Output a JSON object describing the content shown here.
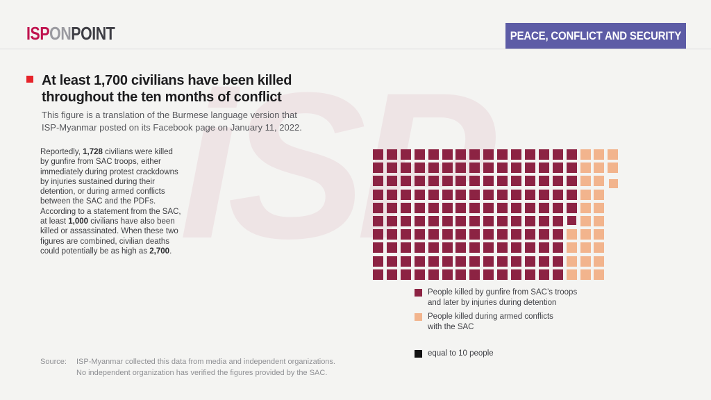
{
  "header": {
    "logo_part1": "ISP",
    "logo_part2": "ON",
    "logo_part3": "POINT",
    "banner_label": "PEACE, CONFLICT AND SECURITY",
    "banner_color": "#5d5ca6"
  },
  "headline": {
    "line1": "At least 1,700 civilians have been killed",
    "line2": "throughout the ten months of conflict",
    "bullet_color": "#e6232a",
    "subtitle_line1": "This figure is a translation of the Burmese language version that",
    "subtitle_line2": "ISP-Myanmar posted on its Facebook page on January 11, 2022."
  },
  "body": {
    "lines": [
      [
        {
          "t": "Reportedly, "
        },
        {
          "t": "1,728",
          "b": true
        },
        {
          "t": " civilians were killed"
        }
      ],
      [
        {
          "t": "by gunfire from SAC troops, either"
        }
      ],
      [
        {
          "t": "immediately during protest crackdowns"
        }
      ],
      [
        {
          "t": "by injuries sustained during their"
        }
      ],
      [
        {
          "t": "detention, or during armed conflicts"
        }
      ],
      [
        {
          "t": "between the SAC and the PDFs."
        }
      ],
      [
        {
          "t": "According to a statement from the SAC,"
        }
      ],
      [
        {
          "t": "at least "
        },
        {
          "t": "1,000",
          "b": true
        },
        {
          "t": " civilians have also been"
        }
      ],
      [
        {
          "t": "killed or assassinated. When these two"
        }
      ],
      [
        {
          "t": "figures are combined, civilian deaths"
        }
      ],
      [
        {
          "t": "could potentially be as high as "
        },
        {
          "t": "2,700",
          "b": true
        },
        {
          "t": "."
        }
      ]
    ]
  },
  "chart_data": {
    "type": "waffle",
    "title": "At least 1,700 civilians have been killed throughout the ten months of conflict",
    "unit_label": "equal to 10 people",
    "people_per_square": 10,
    "rows": 10,
    "columns": 18,
    "grid": [
      "DDDDDDDDDDDDDDDPPP",
      "DDDDDDDDDDDDDDDPPP",
      "DDDDDDDDDDDDDDDPPp",
      "DDDDDDDDDDDDDDDPP.",
      "DDDDDDDDDDDDDDDPP.",
      "DDDDDDDDDDDDDDdPP.",
      "DDDDDDDDDDDDDDPPP.",
      "DDDDDDDDDDDDDDPPP.",
      "DDDDDDDDDDDDDDPPP.",
      "DDDDDDDDDDDDDDPPP."
    ],
    "series": [
      {
        "name": "People killed by gunfire from SAC's troops and later by injuries during detention",
        "color": "#8c2343",
        "squares": 146,
        "approx_people": 1460
      },
      {
        "name": "People killed during armed conflicts with the SAC",
        "color": "#f2b48d",
        "squares": 27,
        "approx_people": 270
      }
    ],
    "figures_cited": {
      "total_killed_reported": 1728,
      "sac_statement_killed": 1000,
      "potential_combined": 2700
    }
  },
  "legend": {
    "items": [
      {
        "swatch": "#8c2343",
        "lines": [
          "People killed by gunfire from SAC’s troops",
          "and later by injuries during detention"
        ]
      },
      {
        "swatch": "#f2b48d",
        "lines": [
          "People killed during armed conflicts",
          "with the SAC"
        ]
      },
      {
        "swatch": "#111111",
        "lines": [
          "equal to 10 people"
        ]
      }
    ]
  },
  "source": {
    "label": "Source:",
    "line1": "ISP-Myanmar collected this data from media and independent organizations.",
    "line2": "No independent organization has verified the figures provided by the SAC."
  },
  "watermark": "iSP"
}
